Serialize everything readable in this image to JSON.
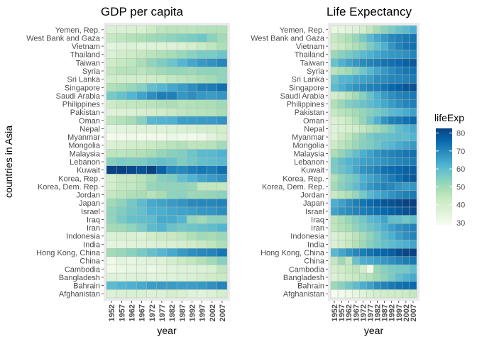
{
  "y_axis_title": "countries in Asia",
  "x_axis_title": "year",
  "countries": [
    "Yemen, Rep.",
    "West Bank and Gaza",
    "Vietnam",
    "Thailand",
    "Taiwan",
    "Syria",
    "Sri Lanka",
    "Singapore",
    "Saudi Arabia",
    "Philippines",
    "Pakistan",
    "Oman",
    "Nepal",
    "Myanmar",
    "Mongolia",
    "Malaysia",
    "Lebanon",
    "Kuwait",
    "Korea, Rep.",
    "Korea, Dem. Rep.",
    "Jordan",
    "Japan",
    "Israel",
    "Iraq",
    "Iran",
    "Indonesia",
    "India",
    "Hong Kong, China",
    "China",
    "Cambodia",
    "Bangladesh",
    "Bahrain",
    "Afghanistan"
  ],
  "years": [
    "1952",
    "1957",
    "1962",
    "1967",
    "1972",
    "1977",
    "1982",
    "1987",
    "1992",
    "1997",
    "2002",
    "2007"
  ],
  "legend": {
    "title": "lifeExp",
    "ticks": [
      "80",
      "70",
      "60",
      "50",
      "40",
      "30"
    ],
    "tick_values": [
      80,
      70,
      60,
      50,
      40,
      30
    ],
    "min": 28.8,
    "max": 82.6,
    "colors": [
      "#f7fcf0",
      "#e0f3db",
      "#ccebc5",
      "#a8ddb5",
      "#7bccc4",
      "#4eb3d3",
      "#2b8cbe",
      "#0868ac",
      "#084081"
    ]
  },
  "chart_data": [
    {
      "type": "heatmap",
      "title": "GDP per capita",
      "xlabel": "year",
      "ylabel": "countries in Asia",
      "x": [
        "1952",
        "1957",
        "1962",
        "1967",
        "1972",
        "1977",
        "1982",
        "1987",
        "1992",
        "1997",
        "2002",
        "2007"
      ],
      "y": [
        "Yemen, Rep.",
        "West Bank and Gaza",
        "Vietnam",
        "Thailand",
        "Taiwan",
        "Syria",
        "Sri Lanka",
        "Singapore",
        "Saudi Arabia",
        "Philippines",
        "Pakistan",
        "Oman",
        "Nepal",
        "Myanmar",
        "Mongolia",
        "Malaysia",
        "Lebanon",
        "Kuwait",
        "Korea, Rep.",
        "Korea, Dem. Rep.",
        "Jordan",
        "Japan",
        "Israel",
        "Iraq",
        "Iran",
        "Indonesia",
        "India",
        "Hong Kong, China",
        "China",
        "Cambodia",
        "Bangladesh",
        "Bahrain",
        "Afghanistan"
      ],
      "values": [
        [
          781,
          804,
          826,
          862,
          1265,
          1830,
          1978,
          1972,
          1879,
          2117,
          2235,
          2281
        ],
        [
          1516,
          1827,
          2199,
          2650,
          3133,
          3682,
          4336,
          5108,
          6017,
          7111,
          4516,
          3025
        ],
        [
          605,
          676,
          772,
          637,
          700,
          714,
          708,
          821,
          989,
          1386,
          1764,
          2442
        ],
        [
          758,
          1076,
          1291,
          1519,
          1926,
          2394,
          2880,
          3511,
          4617,
          5853,
          5913,
          7458
        ],
        [
          1207,
          1508,
          1823,
          2644,
          4063,
          5597,
          7426,
          11054,
          15216,
          20207,
          23235,
          28718
        ],
        [
          1644,
          2118,
          2193,
          1881,
          2572,
          3196,
          3762,
          3774,
          3417,
          4196,
          4258,
          4185
        ],
        [
          1084,
          1073,
          1074,
          1136,
          1213,
          1349,
          1649,
          1877,
          2154,
          2664,
          3016,
          3970
        ],
        [
          2315,
          2844,
          3675,
          4977,
          8597,
          11210,
          15169,
          18862,
          24769,
          33519,
          36023,
          47143
        ],
        [
          6460,
          8157,
          11626,
          16903,
          24837,
          34168,
          33693,
          21199,
          24841,
          20586,
          19014,
          21655
        ],
        [
          1273,
          1548,
          1650,
          1814,
          1989,
          2373,
          2603,
          2189,
          2279,
          2536,
          2651,
          3190
        ],
        [
          685,
          747,
          803,
          942,
          1050,
          1176,
          1443,
          1705,
          1972,
          2049,
          2093,
          2606
        ],
        [
          1828,
          2243,
          2924,
          4721,
          10618,
          11848,
          12955,
          18115,
          18617,
          19702,
          19775,
          22316
        ],
        [
          546,
          598,
          652,
          676,
          674,
          695,
          719,
          776,
          898,
          1011,
          1057,
          1091
        ],
        [
          331,
          350,
          388,
          349,
          357,
          371,
          424,
          385,
          347,
          415,
          611,
          944
        ],
        [
          786,
          912,
          1056,
          1226,
          1421,
          1648,
          2000,
          2338,
          1786,
          1902,
          2140,
          3096
        ],
        [
          1831,
          1810,
          2037,
          2278,
          2849,
          3828,
          4920,
          5249,
          7278,
          10132,
          10207,
          12452
        ],
        [
          4835,
          6090,
          5716,
          6006,
          7486,
          8660,
          7641,
          5378,
          6891,
          8754,
          9313,
          10461
        ],
        [
          108382,
          113523,
          95458,
          80895,
          109348,
          59265,
          31354,
          28118,
          34933,
          40301,
          35110,
          47307
        ],
        [
          1031,
          1488,
          1536,
          2029,
          3031,
          4657,
          5623,
          8533,
          12104,
          15994,
          19234,
          23348
        ],
        [
          1088,
          1571,
          1622,
          2144,
          3702,
          4106,
          4106,
          4106,
          3726,
          1691,
          1646,
          1593
        ],
        [
          1547,
          1886,
          2348,
          2742,
          2110,
          2852,
          4162,
          4449,
          3431,
          3645,
          3845,
          4519
        ],
        [
          3217,
          4318,
          6577,
          9848,
          14779,
          16610,
          19384,
          22376,
          26825,
          28817,
          28605,
          31656
        ],
        [
          4087,
          5386,
          7106,
          8394,
          12786,
          13306,
          15367,
          17122,
          18051,
          20897,
          21906,
          25523
        ],
        [
          4130,
          6229,
          8342,
          8931,
          9576,
          14688,
          14517,
          11644,
          3746,
          3076,
          4391,
          4471
        ],
        [
          3035,
          3290,
          4187,
          5907,
          9614,
          11889,
          7608,
          6643,
          7235,
          8264,
          9241,
          11606
        ],
        [
          750,
          859,
          849,
          762,
          1111,
          1383,
          1517,
          1748,
          2383,
          3119,
          2874,
          3541
        ],
        [
          547,
          590,
          658,
          701,
          724,
          813,
          856,
          977,
          1164,
          1459,
          1747,
          2452
        ],
        [
          3054,
          3629,
          4693,
          6198,
          8316,
          11186,
          14561,
          20038,
          24758,
          28378,
          30209,
          39725
        ],
        [
          400,
          576,
          488,
          613,
          677,
          741,
          962,
          1379,
          1656,
          2289,
          3119,
          4959
        ],
        [
          368,
          434,
          497,
          523,
          422,
          525,
          625,
          684,
          682,
          734,
          896,
          1714
        ],
        [
          684,
          662,
          686,
          721,
          630,
          660,
          677,
          752,
          838,
          973,
          1136,
          1391
        ],
        [
          9867,
          11636,
          12753,
          14805,
          18269,
          19340,
          19211,
          18524,
          19036,
          20292,
          23404,
          29796
        ],
        [
          779,
          821,
          853,
          836,
          740,
          786,
          978,
          852,
          649,
          635,
          727,
          975
        ]
      ]
    },
    {
      "type": "heatmap",
      "title": "Life Expectancy",
      "xlabel": "year",
      "ylabel": "",
      "x": [
        "1952",
        "1957",
        "1962",
        "1967",
        "1972",
        "1977",
        "1982",
        "1987",
        "1992",
        "1997",
        "2002",
        "2007"
      ],
      "y": [
        "Yemen, Rep.",
        "West Bank and Gaza",
        "Vietnam",
        "Thailand",
        "Taiwan",
        "Syria",
        "Sri Lanka",
        "Singapore",
        "Saudi Arabia",
        "Philippines",
        "Pakistan",
        "Oman",
        "Nepal",
        "Myanmar",
        "Mongolia",
        "Malaysia",
        "Lebanon",
        "Kuwait",
        "Korea, Rep.",
        "Korea, Dem. Rep.",
        "Jordan",
        "Japan",
        "Israel",
        "Iraq",
        "Iran",
        "Indonesia",
        "India",
        "Hong Kong, China",
        "China",
        "Cambodia",
        "Bangladesh",
        "Bahrain",
        "Afghanistan"
      ],
      "values": [
        [
          32.5,
          33.97,
          35.18,
          36.98,
          39.85,
          44.18,
          49.11,
          52.92,
          55.6,
          58.02,
          60.31,
          62.7
        ],
        [
          43.16,
          45.67,
          48.13,
          51.63,
          56.53,
          60.77,
          64.41,
          67.05,
          69.72,
          71.1,
          72.37,
          73.42
        ],
        [
          40.41,
          42.89,
          45.36,
          47.84,
          50.25,
          55.76,
          58.82,
          62.82,
          67.66,
          70.67,
          73.02,
          74.25
        ],
        [
          50.85,
          53.63,
          56.06,
          58.29,
          60.41,
          62.49,
          64.6,
          66.08,
          67.3,
          67.52,
          68.56,
          70.62
        ],
        [
          58.5,
          62.4,
          65.2,
          67.5,
          69.39,
          70.59,
          72.16,
          73.4,
          74.26,
          75.25,
          76.99,
          78.4
        ],
        [
          45.88,
          48.28,
          50.31,
          53.66,
          57.3,
          61.2,
          64.59,
          66.97,
          69.25,
          71.53,
          73.05,
          74.14
        ],
        [
          57.59,
          61.46,
          62.19,
          64.27,
          65.04,
          65.95,
          68.76,
          69.01,
          70.38,
          70.46,
          70.82,
          72.4
        ],
        [
          60.4,
          63.18,
          65.8,
          67.95,
          69.52,
          70.8,
          71.76,
          73.56,
          75.79,
          77.16,
          78.77,
          79.97
        ],
        [
          39.88,
          42.87,
          45.91,
          49.9,
          53.89,
          58.69,
          63.01,
          66.3,
          68.77,
          70.53,
          71.63,
          72.78
        ],
        [
          47.75,
          51.33,
          54.76,
          56.39,
          58.07,
          60.06,
          62.08,
          64.15,
          66.46,
          68.56,
          70.3,
          71.69
        ],
        [
          43.44,
          45.56,
          47.67,
          49.8,
          51.93,
          54.04,
          56.16,
          58.25,
          60.84,
          61.82,
          63.61,
          65.48
        ],
        [
          37.58,
          40.08,
          43.17,
          46.99,
          52.14,
          57.37,
          62.73,
          67.73,
          71.2,
          72.5,
          74.19,
          75.64
        ],
        [
          36.16,
          37.69,
          39.39,
          41.47,
          44.0,
          46.75,
          49.59,
          52.54,
          55.73,
          59.43,
          61.34,
          63.79
        ],
        [
          36.32,
          41.91,
          45.11,
          49.38,
          53.07,
          56.06,
          58.06,
          58.34,
          59.32,
          60.33,
          59.91,
          62.07
        ],
        [
          42.24,
          45.25,
          48.25,
          51.25,
          53.75,
          55.49,
          57.49,
          60.22,
          61.27,
          63.63,
          65.03,
          66.8
        ],
        [
          48.46,
          52.1,
          55.74,
          59.37,
          63.01,
          65.26,
          68.0,
          69.5,
          70.69,
          71.94,
          73.04,
          74.24
        ],
        [
          55.93,
          59.49,
          62.09,
          63.87,
          65.42,
          66.1,
          66.98,
          67.93,
          69.29,
          70.27,
          71.03,
          71.99
        ],
        [
          55.57,
          58.03,
          60.47,
          64.62,
          67.71,
          69.34,
          71.31,
          74.17,
          75.19,
          76.16,
          76.9,
          77.59
        ],
        [
          47.45,
          52.68,
          55.29,
          57.72,
          62.61,
          64.77,
          67.12,
          69.81,
          72.24,
          74.65,
          77.05,
          78.62
        ],
        [
          50.06,
          54.08,
          56.66,
          59.94,
          63.98,
          67.16,
          69.1,
          70.65,
          69.98,
          67.73,
          66.66,
          67.3
        ],
        [
          43.16,
          45.67,
          48.13,
          51.63,
          56.53,
          61.13,
          63.74,
          65.87,
          68.02,
          69.77,
          71.26,
          72.54
        ],
        [
          63.03,
          65.5,
          68.73,
          71.43,
          73.42,
          75.38,
          77.11,
          78.67,
          79.36,
          80.69,
          82.0,
          82.6
        ],
        [
          65.39,
          67.84,
          69.39,
          70.75,
          71.63,
          73.06,
          74.45,
          75.6,
          76.93,
          78.27,
          79.7,
          80.75
        ],
        [
          45.32,
          48.44,
          51.46,
          54.46,
          56.95,
          60.41,
          62.04,
          65.04,
          59.46,
          58.81,
          57.05,
          59.55
        ],
        [
          44.87,
          47.18,
          49.33,
          52.47,
          55.23,
          57.7,
          59.62,
          63.04,
          65.74,
          68.04,
          69.45,
          70.96
        ],
        [
          37.47,
          39.92,
          42.52,
          45.96,
          49.2,
          52.7,
          56.16,
          60.14,
          62.68,
          66.04,
          68.59,
          70.65
        ],
        [
          37.37,
          40.25,
          43.61,
          47.19,
          50.65,
          54.21,
          56.6,
          58.55,
          60.22,
          61.77,
          62.88,
          64.7
        ],
        [
          60.96,
          64.75,
          67.65,
          70.0,
          72.0,
          73.6,
          75.45,
          76.2,
          77.6,
          80.0,
          81.5,
          82.21
        ],
        [
          44.0,
          50.55,
          44.5,
          58.38,
          63.12,
          63.97,
          65.53,
          67.27,
          68.69,
          70.43,
          72.03,
          72.96
        ],
        [
          39.42,
          41.37,
          43.42,
          45.42,
          40.32,
          31.22,
          50.96,
          53.91,
          55.8,
          56.53,
          56.75,
          59.72
        ],
        [
          37.48,
          39.35,
          41.22,
          43.45,
          45.25,
          46.92,
          50.01,
          52.82,
          56.02,
          59.41,
          62.01,
          64.06
        ],
        [
          50.94,
          53.83,
          56.92,
          59.92,
          63.3,
          65.59,
          69.05,
          70.75,
          72.6,
          73.92,
          74.8,
          75.64
        ],
        [
          28.8,
          30.33,
          32.0,
          34.02,
          36.09,
          38.44,
          39.85,
          40.82,
          41.67,
          41.76,
          42.13,
          43.83
        ]
      ]
    }
  ]
}
